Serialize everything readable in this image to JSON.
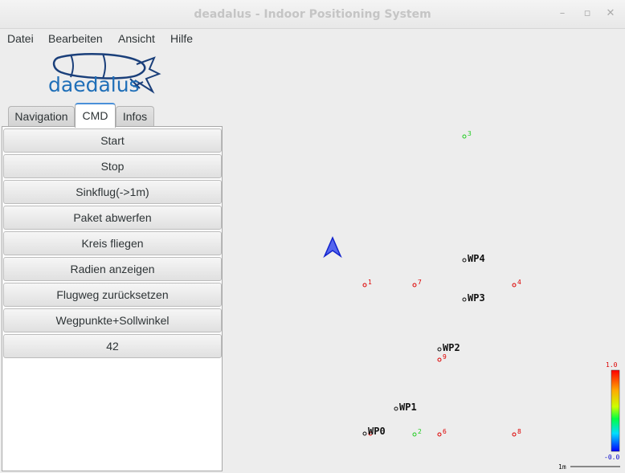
{
  "window": {
    "title": "deadalus - Indoor Positioning System",
    "controls": {
      "minimize": "–",
      "maximize": "▫",
      "close": "✕"
    }
  },
  "menu": [
    "Datei",
    "Bearbeiten",
    "Ansicht",
    "Hilfe"
  ],
  "logo": {
    "text": "daedalus"
  },
  "tabs": [
    {
      "label": "Navigation",
      "active": false
    },
    {
      "label": "CMD",
      "active": true
    },
    {
      "label": "Infos",
      "active": false
    }
  ],
  "commands": [
    "Start",
    "Stop",
    "Sinkflug(->1m)",
    "Paket abwerfen",
    "Kreis fliegen",
    "Radien anzeigen",
    "Flugweg zurücksetzen",
    "Wegpunkte+Sollwinkel",
    "42"
  ],
  "map": {
    "waypoints": [
      "WP0",
      "WP1",
      "WP2",
      "WP3",
      "WP4"
    ],
    "beacons": [
      "1",
      "2",
      "3",
      "4",
      "6",
      "7",
      "8",
      "9"
    ],
    "colorbar": {
      "max": "1.0",
      "min": "-0.0"
    },
    "scale_label": "1m",
    "colors": {
      "red": "#dd0000",
      "green": "#22cc22",
      "black": "#111111",
      "arrow": "#3344ee"
    }
  }
}
